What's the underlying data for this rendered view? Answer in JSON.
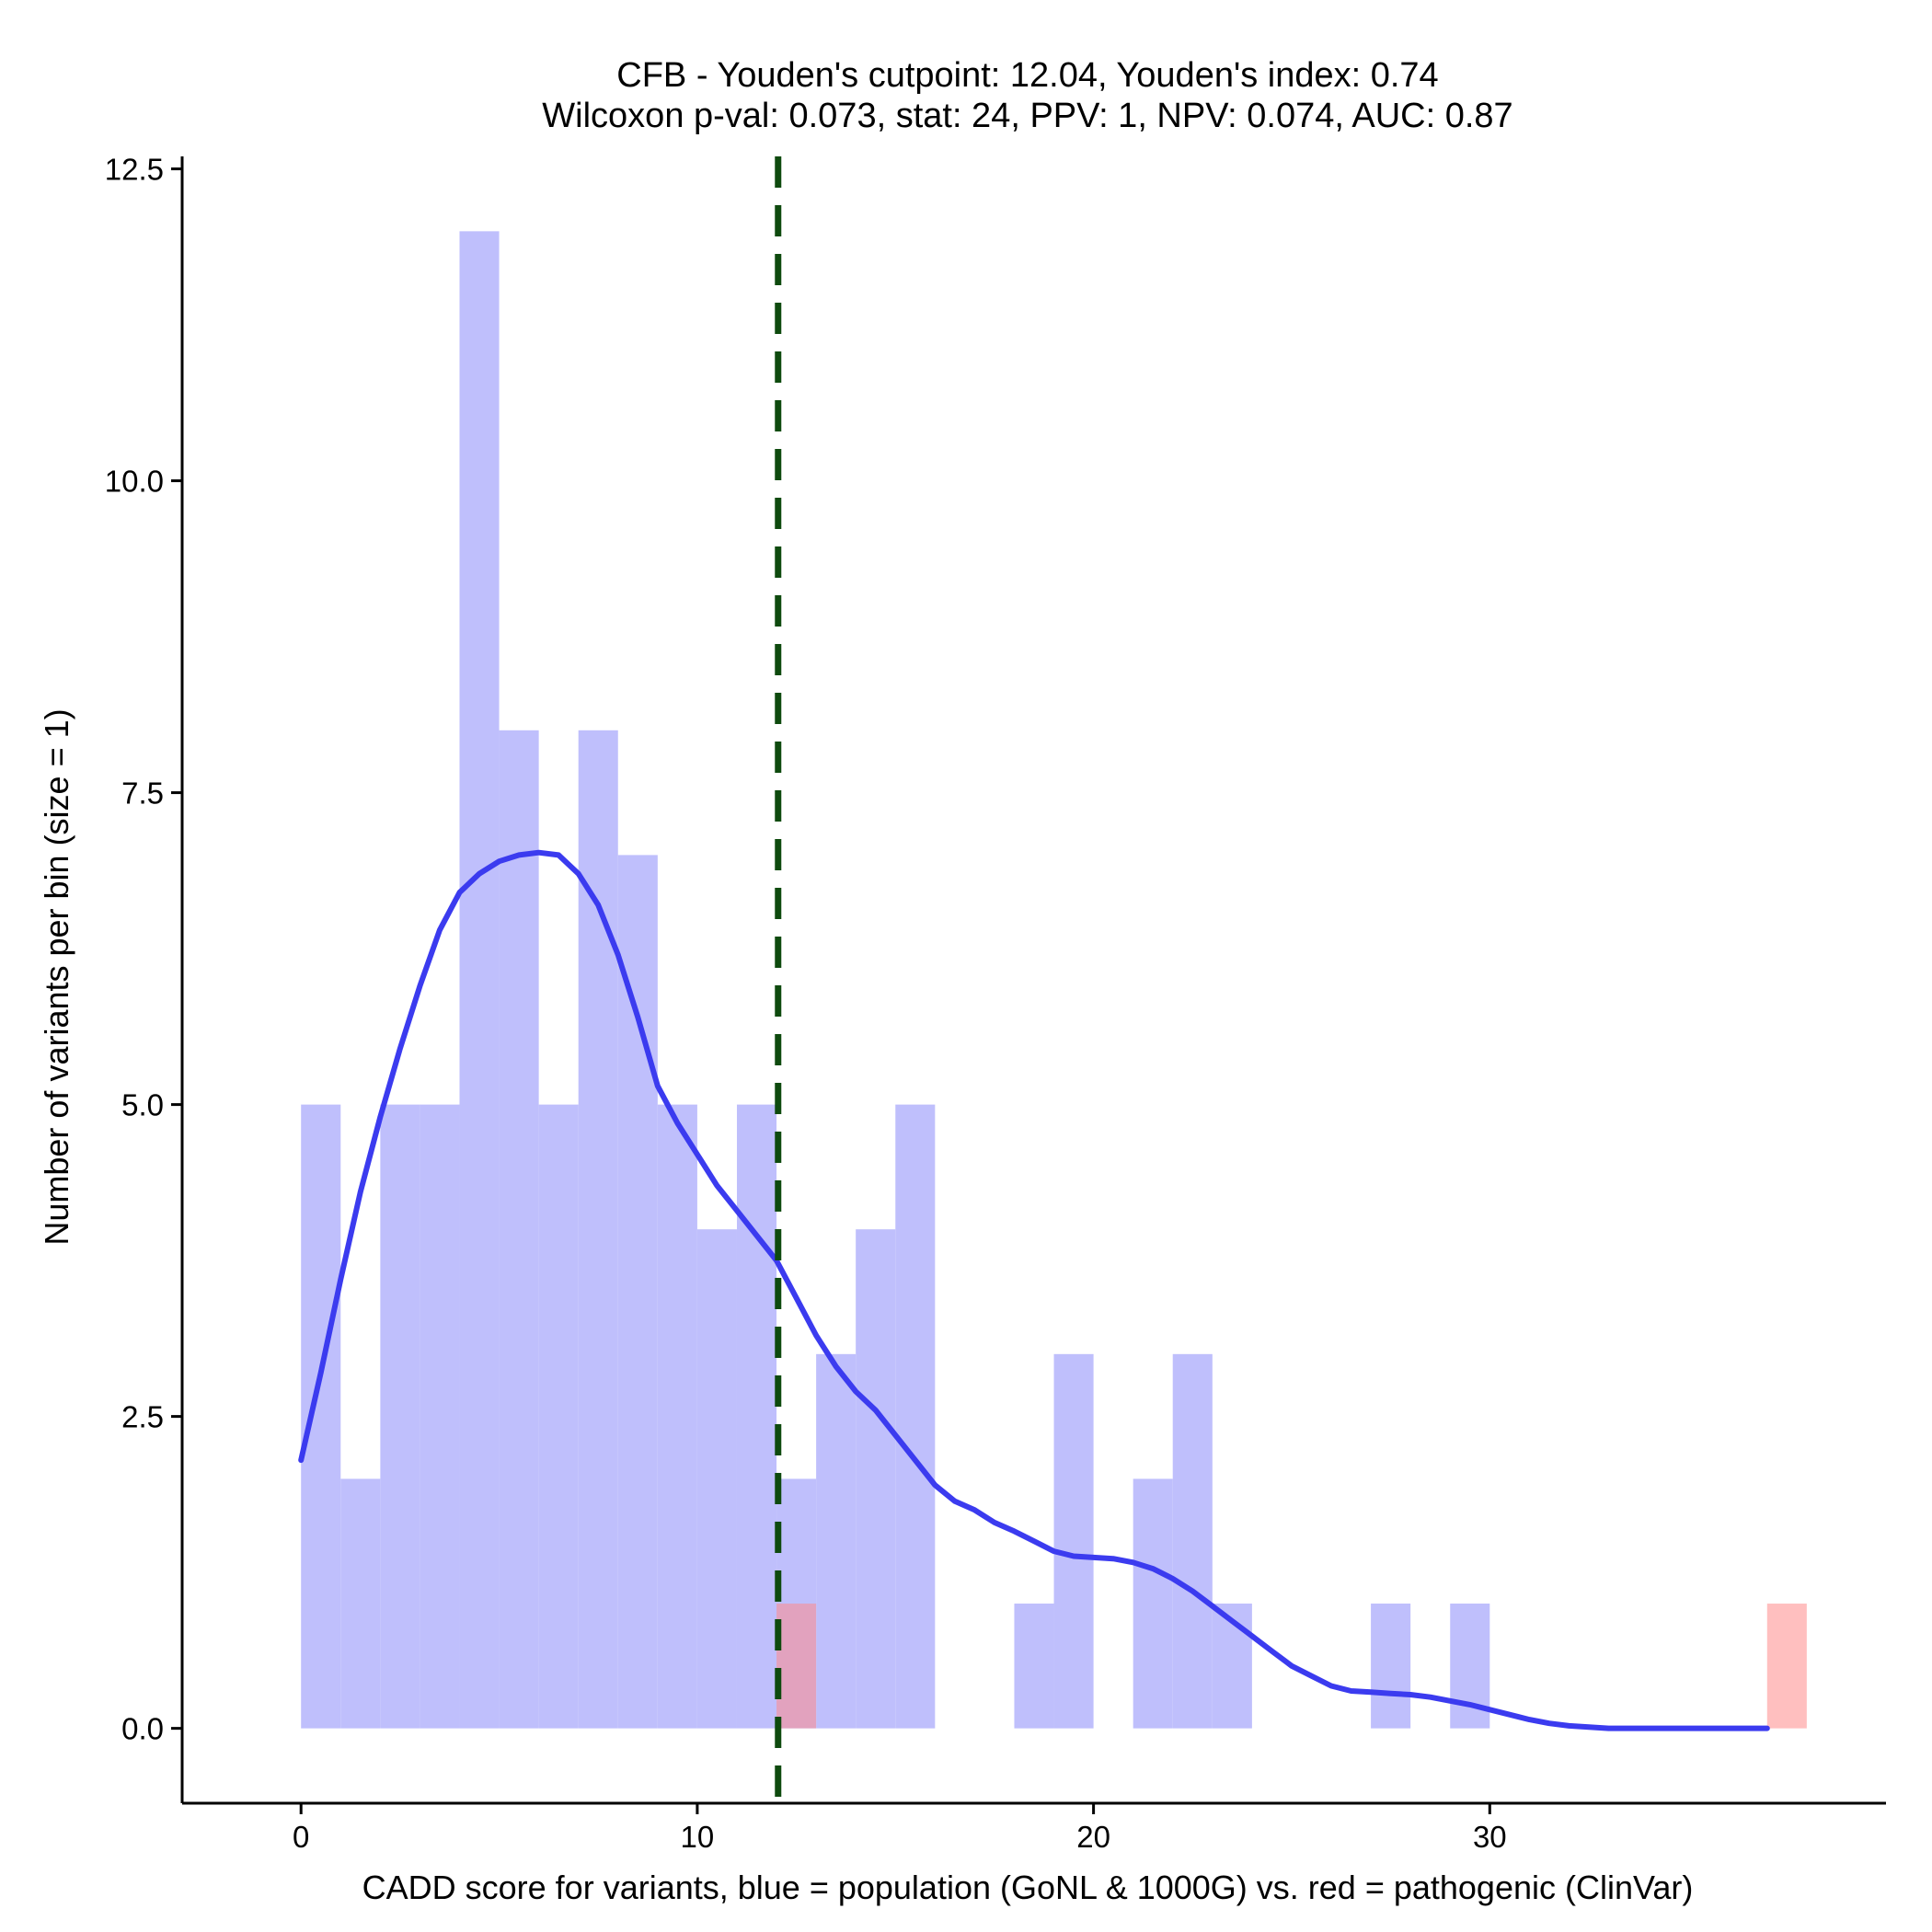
{
  "chart_data": {
    "type": "bar",
    "title": "CFB - Youden's cutpoint: 12.04, Youden's index: 0.74",
    "subtitle": "Wilcoxon p-val: 0.073, stat: 24, PPV: 1, NPV: 0.074, AUC: 0.87",
    "xlabel": "CADD score for variants, blue = population (GoNL & 1000G) vs. red = pathogenic (ClinVar)",
    "ylabel": "Number of variants per bin (size = 1)",
    "xlim": [
      -3,
      40
    ],
    "ylim": [
      -0.6,
      12.6
    ],
    "x_ticks": [
      0,
      10,
      20,
      30
    ],
    "y_ticks": [
      0.0,
      2.5,
      5.0,
      7.5,
      10.0,
      12.5
    ],
    "x_tick_labels": [
      "0",
      "10",
      "20",
      "30"
    ],
    "y_tick_labels": [
      "0.0",
      "2.5",
      "5.0",
      "7.5",
      "10.0",
      "12.5"
    ],
    "bin_width": 1,
    "series": [
      {
        "name": "population (GoNL & 1000G)",
        "color": "#bfbffc",
        "bins": [
          {
            "start": 0,
            "count": 5
          },
          {
            "start": 1,
            "count": 2
          },
          {
            "start": 2,
            "count": 5
          },
          {
            "start": 3,
            "count": 5
          },
          {
            "start": 4,
            "count": 12
          },
          {
            "start": 5,
            "count": 8
          },
          {
            "start": 6,
            "count": 5
          },
          {
            "start": 7,
            "count": 8
          },
          {
            "start": 8,
            "count": 7
          },
          {
            "start": 9,
            "count": 5
          },
          {
            "start": 10,
            "count": 4
          },
          {
            "start": 11,
            "count": 5
          },
          {
            "start": 12,
            "count": 2
          },
          {
            "start": 13,
            "count": 3
          },
          {
            "start": 14,
            "count": 4
          },
          {
            "start": 15,
            "count": 5
          },
          {
            "start": 18,
            "count": 1
          },
          {
            "start": 19,
            "count": 3
          },
          {
            "start": 21,
            "count": 2
          },
          {
            "start": 22,
            "count": 3
          },
          {
            "start": 23,
            "count": 1
          },
          {
            "start": 27,
            "count": 1
          },
          {
            "start": 29,
            "count": 1
          }
        ]
      },
      {
        "name": "pathogenic (ClinVar)",
        "color": "#ff8a8a",
        "bins": [
          {
            "start": 12,
            "count": 1
          },
          {
            "start": 37,
            "count": 1
          }
        ]
      }
    ],
    "density_curve": {
      "name": "population density (scaled)",
      "color": "#3b3bef",
      "x": [
        0,
        0.5,
        1,
        1.5,
        2,
        2.5,
        3,
        3.5,
        4,
        4.5,
        5,
        5.5,
        6,
        6.5,
        7,
        7.5,
        8,
        8.5,
        9,
        9.5,
        10,
        10.5,
        11,
        11.5,
        12,
        12.5,
        13,
        13.5,
        14,
        14.5,
        15,
        15.5,
        16,
        16.5,
        17,
        17.5,
        18,
        18.5,
        19,
        19.5,
        20,
        20.5,
        21,
        21.5,
        22,
        22.5,
        23,
        23.5,
        24,
        24.5,
        25,
        25.5,
        26,
        26.5,
        27,
        27.5,
        28,
        28.5,
        29,
        29.5,
        30,
        30.5,
        31,
        31.5,
        32,
        32.5,
        33,
        33.5,
        34,
        35,
        36,
        37
      ],
      "y": [
        2.15,
        2.85,
        3.6,
        4.3,
        4.9,
        5.45,
        5.95,
        6.4,
        6.7,
        6.85,
        6.95,
        7.0,
        7.02,
        7.0,
        6.85,
        6.6,
        6.2,
        5.7,
        5.15,
        4.85,
        4.6,
        4.35,
        4.15,
        3.95,
        3.75,
        3.45,
        3.15,
        2.9,
        2.7,
        2.55,
        2.35,
        2.15,
        1.95,
        1.82,
        1.75,
        1.65,
        1.58,
        1.5,
        1.42,
        1.38,
        1.37,
        1.36,
        1.33,
        1.28,
        1.2,
        1.1,
        0.98,
        0.86,
        0.74,
        0.62,
        0.5,
        0.42,
        0.34,
        0.3,
        0.29,
        0.28,
        0.27,
        0.25,
        0.22,
        0.19,
        0.15,
        0.11,
        0.07,
        0.04,
        0.02,
        0.01,
        0.0,
        0.0,
        0.0,
        0.0,
        0.0,
        0.0
      ]
    },
    "cutpoint": {
      "label": "Youden's cutpoint",
      "x": 12.04,
      "color": "#0e4a0e"
    },
    "grid": false,
    "legend": "none"
  }
}
